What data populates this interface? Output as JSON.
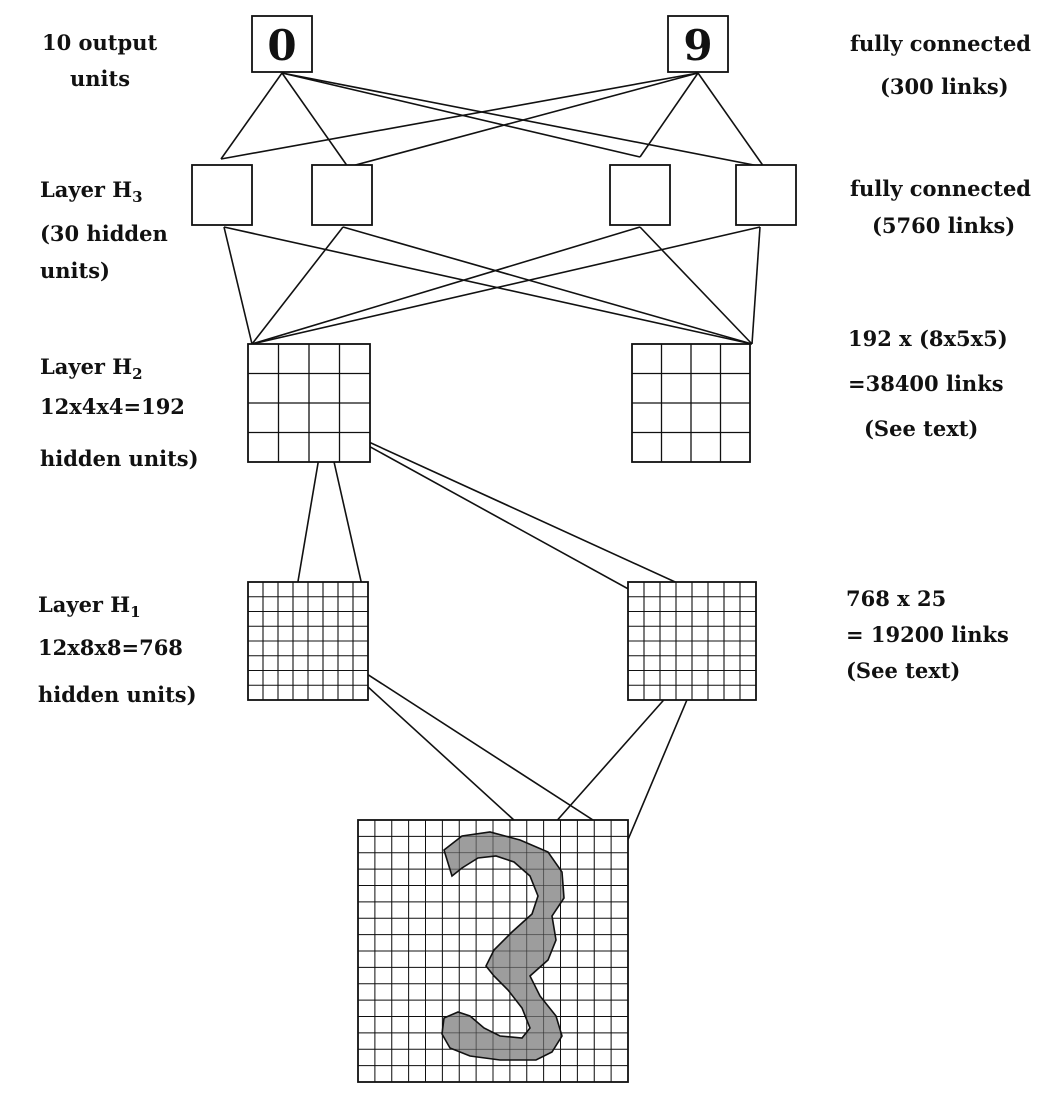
{
  "output": {
    "digits": [
      "0",
      "9"
    ],
    "label_line1": "10 output",
    "label_line2": "units",
    "conn_line1": "fully connected",
    "conn_line2": "(300 links)"
  },
  "h3": {
    "label": "Layer H",
    "sub": "3",
    "line2": "(30 hidden",
    "line3": "units)",
    "conn_line1": "fully connected",
    "conn_line2": "(5760 links)"
  },
  "h2": {
    "label": "Layer H",
    "sub": "2",
    "line2": "12x4x4=192",
    "line3": "hidden units)",
    "conn_line1": "192 x (8x5x5)",
    "conn_line2": "=38400 links",
    "conn_line3": "(See text)"
  },
  "h1": {
    "label": "Layer  H",
    "sub": "1",
    "line2": "12x8x8=768",
    "line3": "hidden units)",
    "conn_line1": "768 x 25",
    "conn_line2": "= 19200 links",
    "conn_line3": "(See text)"
  },
  "colors": {
    "ink": "#111111",
    "digit_fill": "#8c8c8c"
  }
}
